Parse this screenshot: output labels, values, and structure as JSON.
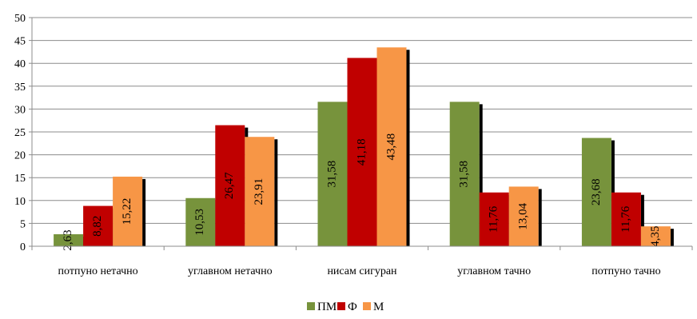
{
  "chart_data": {
    "type": "bar",
    "categories": [
      "потпуно нетачно",
      "углавном нетачно",
      "нисам сигуран",
      "углавном тачно",
      "потпуно тачно"
    ],
    "series": [
      {
        "name": "ПМ",
        "color": "#77933c",
        "values": [
          2.63,
          10.53,
          31.58,
          31.58,
          23.68
        ],
        "labels": [
          "2,63",
          "10,53",
          "31,58",
          "31,58",
          "23,68"
        ]
      },
      {
        "name": "Ф",
        "color": "#c00000",
        "values": [
          8.82,
          26.47,
          41.18,
          11.76,
          11.76
        ],
        "labels": [
          "8,82",
          "26,47",
          "41,18",
          "11,76",
          "11,76"
        ]
      },
      {
        "name": "М",
        "color": "#f79646",
        "values": [
          15.22,
          23.91,
          43.48,
          13.04,
          4.35
        ],
        "labels": [
          "15,22",
          "23,91",
          "43,48",
          "13,04",
          "4,35"
        ]
      }
    ],
    "yticks": [
      "0",
      "5",
      "10",
      "15",
      "20",
      "25",
      "30",
      "35",
      "40",
      "45",
      "50"
    ],
    "ylim": [
      0,
      50
    ],
    "grid": true,
    "legend_position": "bottom"
  }
}
